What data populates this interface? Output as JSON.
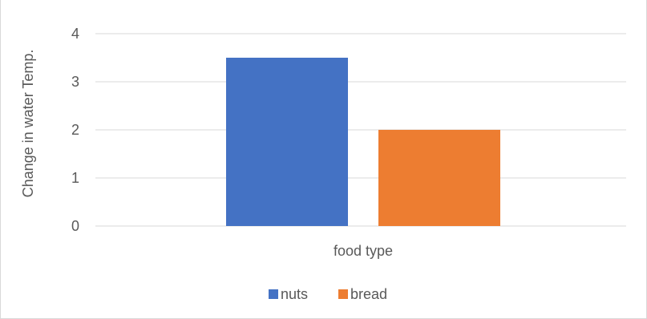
{
  "chart_data": {
    "type": "bar",
    "categories": [
      "food type"
    ],
    "series": [
      {
        "name": "nuts",
        "values": [
          3.5
        ],
        "color": "#4472C4"
      },
      {
        "name": "bread",
        "values": [
          2
        ],
        "color": "#ED7D31"
      }
    ],
    "title": "",
    "xlabel": "",
    "ylabel": "Change in water Temp.",
    "ylim": [
      0,
      4
    ],
    "yticks": [
      "0",
      "1",
      "2",
      "3",
      "4"
    ],
    "grid": true,
    "legend_position": "bottom"
  }
}
